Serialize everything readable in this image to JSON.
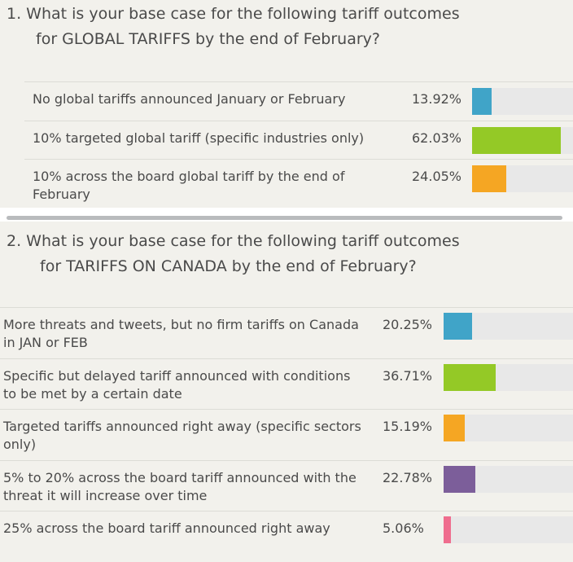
{
  "chart_data": [
    {
      "type": "bar",
      "title_line1": "1. What is your base case for the following tariff outcomes",
      "title_line2": "for GLOBAL TARIFFS by the end of February?",
      "categories": [
        "No global tariffs announced January or February",
        "10% targeted global tariff (specific industries only)",
        "10% across the board global tariff by the end of February"
      ],
      "values": [
        13.92,
        62.03,
        24.05
      ],
      "value_labels": [
        "13.92%",
        "62.03%",
        "24.05%"
      ],
      "colors": [
        "#40a4c8",
        "#94c926",
        "#f5a623"
      ]
    },
    {
      "type": "bar",
      "title_line1": "2. What is your base case for the following tariff outcomes",
      "title_line2": "for TARIFFS ON CANADA by the end of February?",
      "categories": [
        "More threats and tweets, but no firm tariffs on Canada in JAN or FEB",
        "Specific but delayed tariff announced with conditions to be met by a certain date",
        "Targeted tariffs announced right away (specific sectors only)",
        "5% to 20% across the board tariff announced with the threat it will increase over time",
        "25% across the board tariff announced right away"
      ],
      "values": [
        20.25,
        36.71,
        15.19,
        22.78,
        5.06
      ],
      "value_labels": [
        "20.25%",
        "36.71%",
        "15.19%",
        "22.78%",
        "5.06%"
      ],
      "colors": [
        "#40a4c8",
        "#94c926",
        "#f5a623",
        "#7c5e9a",
        "#ef6d8e"
      ]
    }
  ]
}
